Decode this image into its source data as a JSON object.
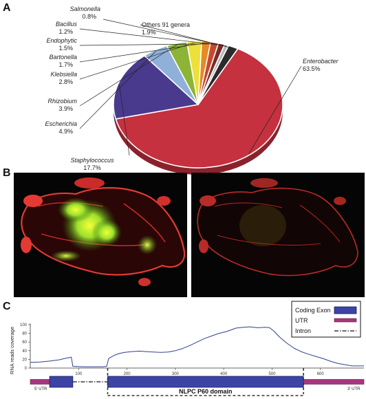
{
  "panels": {
    "a": {
      "letter": "A"
    },
    "b": {
      "letter": "B"
    },
    "c": {
      "letter": "C"
    }
  },
  "chart_data": [
    {
      "type": "pie",
      "panel": "A",
      "title": "",
      "slices": [
        {
          "name": "Enterobacter",
          "value": 63.5,
          "label": "63.5%",
          "color": "#c5313f"
        },
        {
          "name": "Staphylococcus",
          "value": 17.7,
          "label": "17.7%",
          "color": "#4a3a8e"
        },
        {
          "name": "Escherichia",
          "value": 4.9,
          "label": "4.9%",
          "color": "#8fb0d9"
        },
        {
          "name": "Rhizobium",
          "value": 3.9,
          "label": "3.9%",
          "color": "#8db436"
        },
        {
          "name": "Klebsiella",
          "value": 2.8,
          "label": "2.8%",
          "color": "#ece03a"
        },
        {
          "name": "Bartonella",
          "value": 1.7,
          "label": "1.7%",
          "color": "#e58a27"
        },
        {
          "name": "Endophytic",
          "value": 1.5,
          "label": "1.5%",
          "color": "#c7492c"
        },
        {
          "name": "Bacillus",
          "value": 1.2,
          "label": "1.2%",
          "color": "#7a2a2a"
        },
        {
          "name": "Salmonella",
          "value": 0.8,
          "label": "0.8%",
          "color": "#b8b8b8"
        },
        {
          "name": "Others 91 genera",
          "value": 1.9,
          "label": "1.9%",
          "color": "#2b2b2b"
        }
      ]
    },
    {
      "type": "line",
      "panel": "C",
      "title": "",
      "ylabel": "RNA reads coverage",
      "xlabel": "",
      "ylim": [
        0,
        100
      ],
      "xlim": [
        0,
        690
      ],
      "yticks": [
        0,
        20,
        40,
        60,
        80,
        100
      ],
      "xticks": [
        100,
        200,
        300,
        400,
        500,
        600
      ],
      "series": [
        {
          "color": "#2d3f8f",
          "points": [
            [
              0,
              13
            ],
            [
              20,
              14
            ],
            [
              40,
              16
            ],
            [
              60,
              19
            ],
            [
              75,
              23
            ],
            [
              85,
              25
            ],
            [
              88,
              4
            ],
            [
              110,
              3
            ],
            [
              150,
              3
            ],
            [
              158,
              4
            ],
            [
              162,
              22
            ],
            [
              175,
              30
            ],
            [
              185,
              34
            ],
            [
              195,
              36
            ],
            [
              210,
              38
            ],
            [
              225,
              39
            ],
            [
              240,
              38
            ],
            [
              255,
              37
            ],
            [
              270,
              36
            ],
            [
              285,
              37
            ],
            [
              300,
              40
            ],
            [
              315,
              45
            ],
            [
              330,
              52
            ],
            [
              345,
              60
            ],
            [
              360,
              68
            ],
            [
              375,
              74
            ],
            [
              390,
              80
            ],
            [
              405,
              84
            ],
            [
              415,
              88
            ],
            [
              425,
              92
            ],
            [
              440,
              94
            ],
            [
              455,
              95
            ],
            [
              470,
              93
            ],
            [
              485,
              94
            ],
            [
              495,
              93
            ],
            [
              505,
              84
            ],
            [
              515,
              72
            ],
            [
              530,
              58
            ],
            [
              545,
              46
            ],
            [
              560,
              38
            ],
            [
              575,
              32
            ],
            [
              590,
              27
            ],
            [
              605,
              22
            ],
            [
              620,
              16
            ],
            [
              635,
              11
            ],
            [
              650,
              8
            ],
            [
              665,
              5
            ],
            [
              690,
              5
            ]
          ]
        }
      ],
      "legend": {
        "position": "top-right",
        "items": [
          {
            "label": "Coding Exon",
            "kind": "box",
            "color": "#3c44a6"
          },
          {
            "label": "UTR",
            "kind": "bar",
            "color": "#a8367e"
          },
          {
            "label": "Intron",
            "kind": "dashdot",
            "color": "#111111"
          }
        ]
      },
      "gene_model": {
        "utr5_label": "5' UTR",
        "utr3_label": "3' UTR",
        "segments": [
          {
            "kind": "utr",
            "start": 0,
            "end": 40
          },
          {
            "kind": "exon",
            "start": 40,
            "end": 88
          },
          {
            "kind": "intron",
            "start": 88,
            "end": 160
          },
          {
            "kind": "exon",
            "start": 160,
            "end": 565
          },
          {
            "kind": "utr",
            "start": 565,
            "end": 690
          }
        ],
        "domain": {
          "label": "NLPC P60 domain",
          "start": 160,
          "end": 565
        }
      }
    }
  ]
}
